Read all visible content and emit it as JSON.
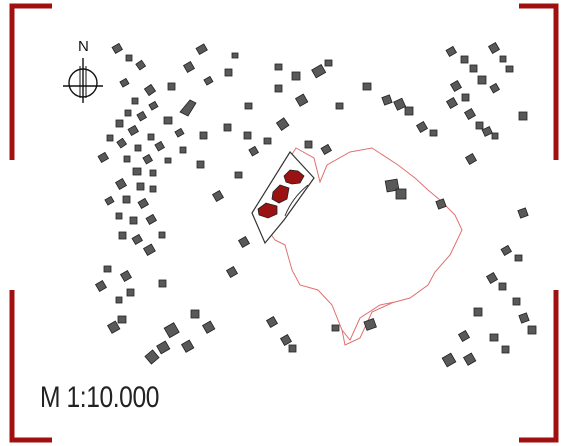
{
  "map": {
    "north_label": "N",
    "scale_label": "M 1:10.000"
  },
  "colors": {
    "frame": "#a01010",
    "buildings": "#595959",
    "building_outline": "#222222",
    "site_boundary": "#e07070",
    "highlighted_buildings": "#9a1212",
    "site_plot_outline": "#333333"
  },
  "icons": {
    "north_arrow": "compass-crosshair-icon"
  }
}
